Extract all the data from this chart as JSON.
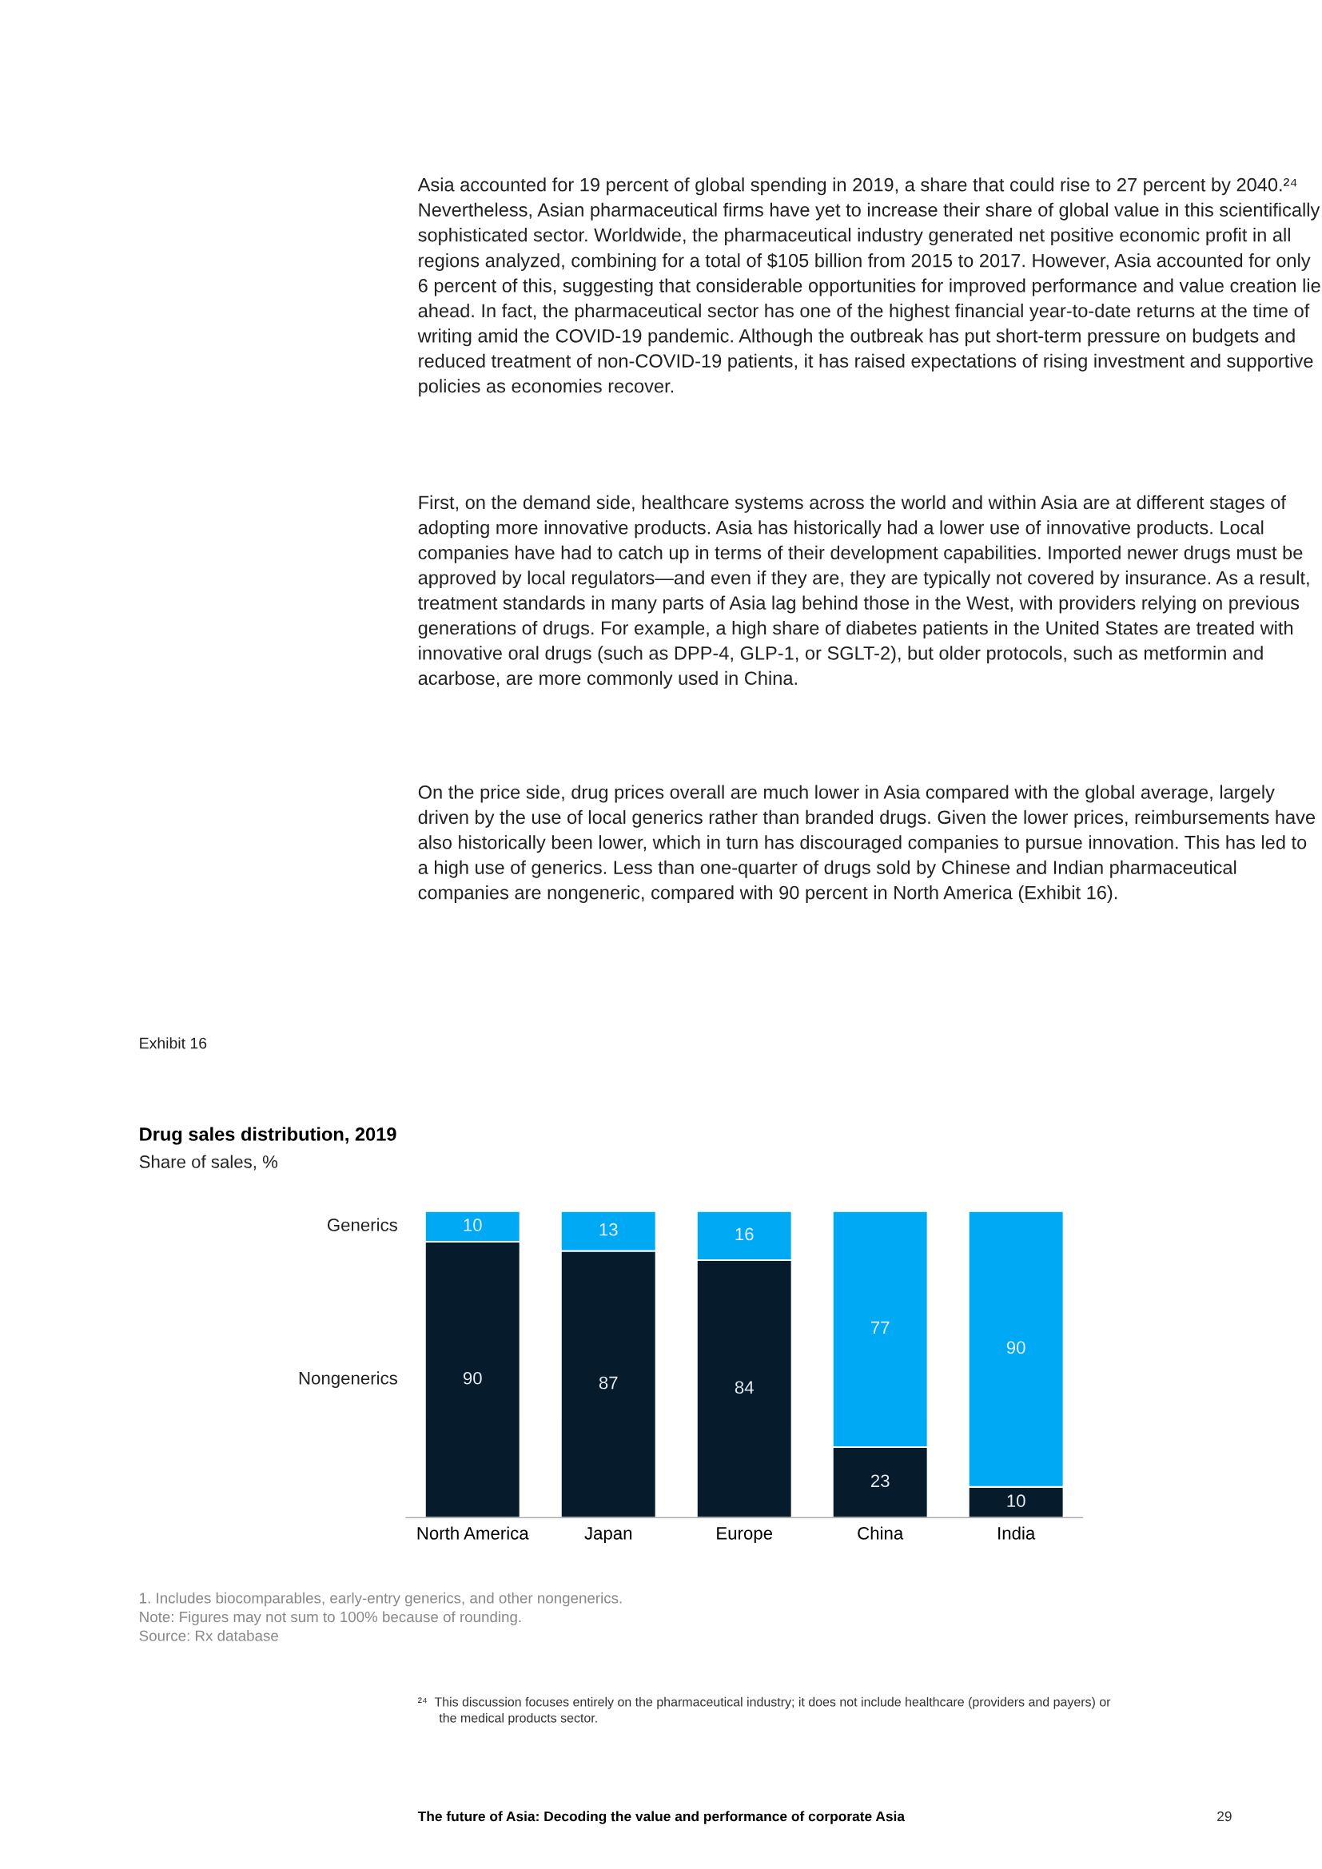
{
  "chart_data": {
    "type": "bar",
    "title": "Drug sales distribution, 2019",
    "subtitle": "Share of sales, %",
    "categories": [
      "North America",
      "Japan",
      "Europe",
      "China",
      "India"
    ],
    "stacked": true,
    "data_labels": true,
    "legend": false,
    "series": [
      {
        "name": "Nongenerics",
        "color": "#061b2b",
        "values": [
          90,
          87,
          84,
          23,
          10
        ]
      },
      {
        "name": "Generics",
        "color": "#00a9f4",
        "values": [
          10,
          13,
          16,
          77,
          90
        ]
      }
    ],
    "annotations": [
      "Asia accounted for 19 percent of global spending in 2019, a share that could rise to 27 percent by 2040.²⁴ Nevertheless, Asian pharmaceutical firms have yet to increase their share of global value in this scientifically sophisticated sector. Worldwide, the pharmaceutical industry generated net positive economic profit in all regions analyzed, combining for a total of $105 billion from 2015 to 2017. However, Asia accounted for only 6 percent of this, suggesting that considerable opportunities for improved performance and value creation lie ahead. In fact, the pharmaceutical sector has one of the highest financial year-to-date returns at the time of writing amid the COVID-19 pandemic. Although the outbreak has put short-term pressure on budgets and reduced treatment of non-COVID-19 patients, it has raised expectations of rising investment and supportive policies as economies recover.",
      "First, on the demand side, healthcare systems across the world and within Asia are at different stages of adopting more innovative products. Asia has historically had a lower use of innovative products. Local companies have had to catch up in terms of their development capabilities. Imported newer drugs must be approved by local regulators—and even if they are, they are typically not covered by insurance. As a result, treatment standards in many parts of Asia lag behind those in the West, with providers relying on previous generations of drugs. For example, a high share of diabetes patients in the United States are treated with innovative oral drugs (such as DPP-4, GLP-1, or SGLT-2), but older protocols, such as metformin and acarbose, are more commonly used in China.",
      "On the price side, drug prices overall are much lower in Asia compared with the global average, largely driven by the use of local generics rather than branded drugs. Given the lower prices, reimbursements have also historically been lower, which in turn has discouraged companies to pursue innovation. This has led to a high use of generics. Less than one-quarter of drugs sold by Chinese and Indian pharmaceutical companies are nongeneric, compared with 90 percent in North America (Exhibit 16).",
      "Exhibit 16",
      "1. Includes biocomparables, early-entry generics, and other nongenerics.\nNote: Figures may not sum to 100% because of rounding.\nSource: Rx database",
      "²⁴  This discussion focuses entirely on the pharmaceutical industry; it does not include healthcare (providers and payers) or\n      the medical products sector.",
      "The future of Asia: Decoding the value and performance of corporate Asia",
      "29"
    ]
  }
}
